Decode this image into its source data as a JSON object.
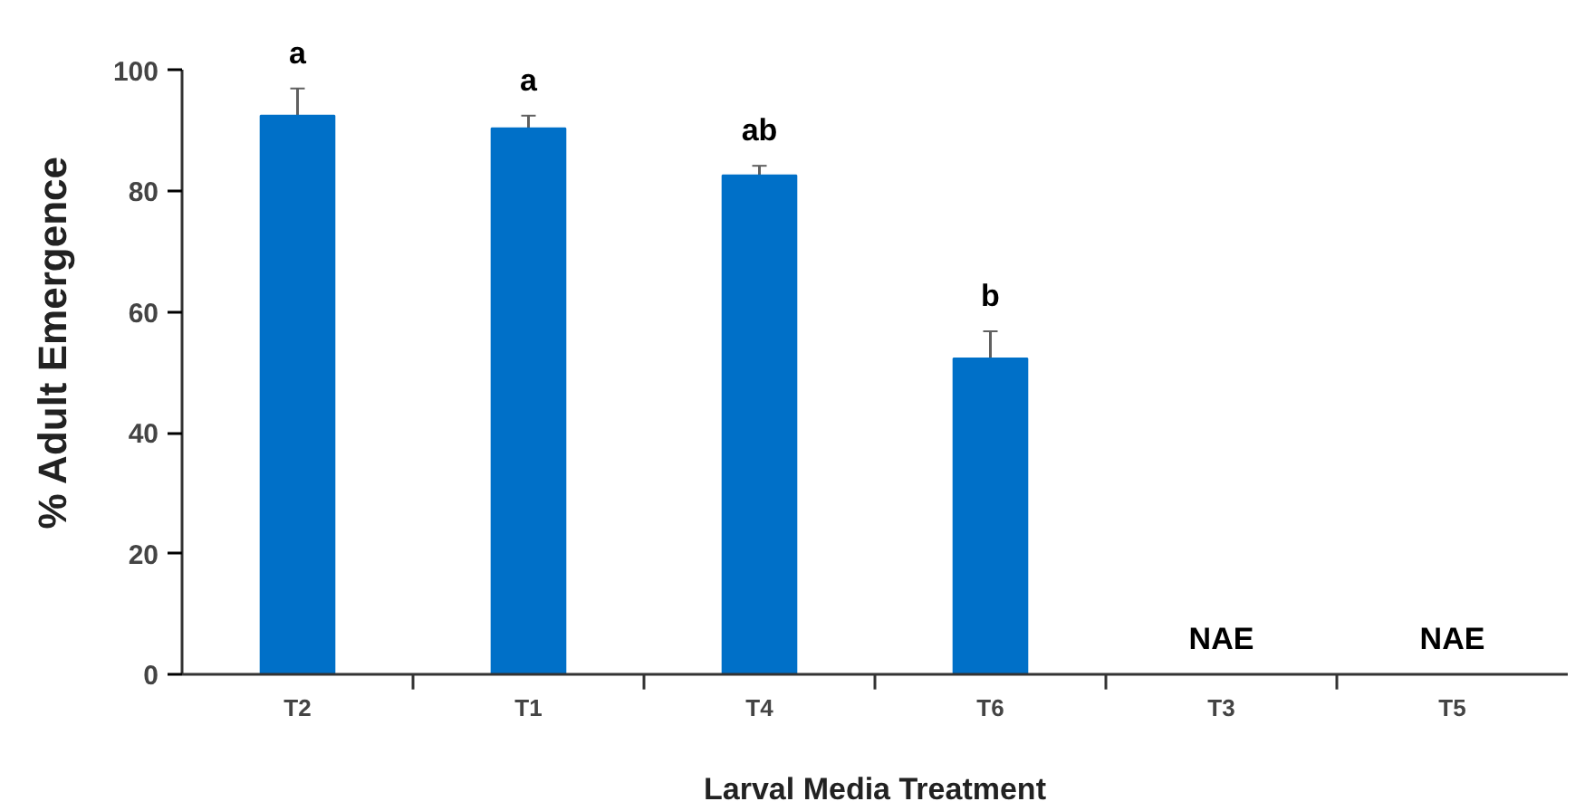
{
  "chart_data": {
    "type": "bar",
    "xlabel": "Larval Media Treatment",
    "ylabel": "% Adult Emergence",
    "categories": [
      "T2",
      "T1",
      "T4",
      "T6",
      "T3",
      "T5"
    ],
    "values": [
      92.5,
      90.4,
      82.6,
      52.3,
      null,
      null
    ],
    "errors": [
      4.5,
      2.1,
      1.6,
      4.5,
      null,
      null
    ],
    "color": "#0070c8",
    "ylim": [
      0,
      100
    ],
    "yticks": [
      0,
      20,
      40,
      60,
      80,
      100
    ],
    "grid": false,
    "annotations": [
      "a",
      "a",
      "ab",
      "b",
      "NAE",
      "NAE"
    ]
  }
}
